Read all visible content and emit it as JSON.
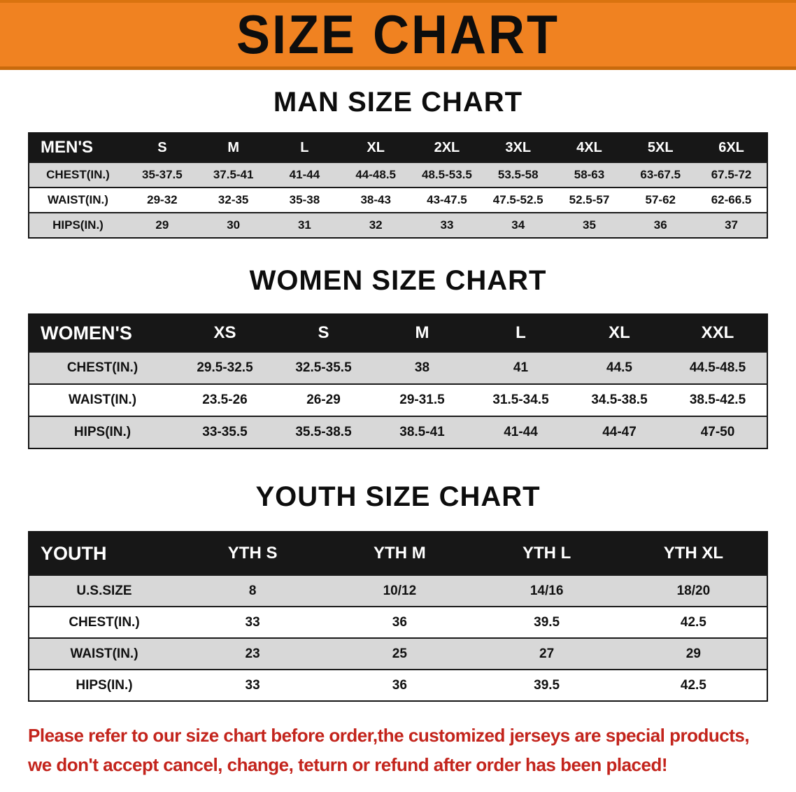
{
  "banner": {
    "title": "SIZE CHART",
    "bg_color": "#F08221"
  },
  "colors": {
    "table_header_bg": "#171717",
    "row_stripe": "#D8D8D8",
    "footer_text": "#C3241C"
  },
  "sections": [
    {
      "heading": "MAN SIZE CHART",
      "table": {
        "header": [
          "MEN'S",
          "S",
          "M",
          "L",
          "XL",
          "2XL",
          "3XL",
          "4XL",
          "5XL",
          "6XL"
        ],
        "rows": [
          {
            "label": "CHEST(IN.)",
            "values": [
              "35-37.5",
              "37.5-41",
              "41-44",
              "44-48.5",
              "48.5-53.5",
              "53.5-58",
              "58-63",
              "63-67.5",
              "67.5-72"
            ]
          },
          {
            "label": "WAIST(IN.)",
            "values": [
              "29-32",
              "32-35",
              "35-38",
              "38-43",
              "43-47.5",
              "47.5-52.5",
              "52.5-57",
              "57-62",
              "62-66.5"
            ]
          },
          {
            "label": "HIPS(IN.)",
            "values": [
              "29",
              "30",
              "31",
              "32",
              "33",
              "34",
              "35",
              "36",
              "37"
            ]
          }
        ]
      }
    },
    {
      "heading": "WOMEN SIZE CHART",
      "table": {
        "header": [
          "WOMEN'S",
          "XS",
          "S",
          "M",
          "L",
          "XL",
          "XXL"
        ],
        "rows": [
          {
            "label": "CHEST(IN.)",
            "values": [
              "29.5-32.5",
              "32.5-35.5",
              "38",
              "41",
              "44.5",
              "44.5-48.5"
            ]
          },
          {
            "label": "WAIST(IN.)",
            "values": [
              "23.5-26",
              "26-29",
              "29-31.5",
              "31.5-34.5",
              "34.5-38.5",
              "38.5-42.5"
            ]
          },
          {
            "label": "HIPS(IN.)",
            "values": [
              "33-35.5",
              "35.5-38.5",
              "38.5-41",
              "41-44",
              "44-47",
              "47-50"
            ]
          }
        ]
      }
    },
    {
      "heading": "YOUTH SIZE CHART",
      "table": {
        "header": [
          "YOUTH",
          "YTH S",
          "YTH M",
          "YTH L",
          "YTH XL"
        ],
        "rows": [
          {
            "label": "U.S.SIZE",
            "values": [
              "8",
              "10/12",
              "14/16",
              "18/20"
            ]
          },
          {
            "label": "CHEST(IN.)",
            "values": [
              "33",
              "36",
              "39.5",
              "42.5"
            ]
          },
          {
            "label": "WAIST(IN.)",
            "values": [
              "23",
              "25",
              "27",
              "29"
            ]
          },
          {
            "label": "HIPS(IN.)",
            "values": [
              "33",
              "36",
              "39.5",
              "42.5"
            ]
          }
        ]
      }
    }
  ],
  "footer": {
    "lines": [
      "Please refer to our size chart before order,the customized jerseys are special products,",
      "we don't accept cancel, change, teturn or refund after order has been placed!"
    ]
  }
}
